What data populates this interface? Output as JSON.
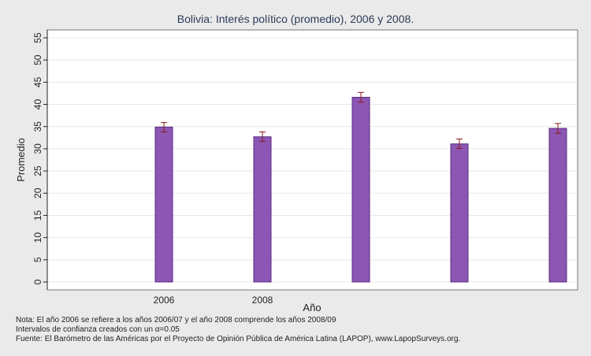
{
  "chart_data": {
    "type": "bar",
    "title": "Bolivia: Interés político (promedio), 2006 y 2008.",
    "xlabel": "Año",
    "ylabel": "Promedio",
    "categories": [
      "2006",
      "2008",
      "",
      "",
      ""
    ],
    "values": [
      34.9,
      32.7,
      41.6,
      31.1,
      34.6
    ],
    "ci_low": [
      33.8,
      31.7,
      40.5,
      30.1,
      33.5
    ],
    "ci_high": [
      35.9,
      33.8,
      42.7,
      32.2,
      35.7
    ],
    "ylim": [
      0,
      55
    ],
    "yticks": [
      0,
      5,
      10,
      15,
      20,
      25,
      30,
      35,
      40,
      45,
      50,
      55
    ],
    "grid": true,
    "bar_color": "#8c56b4",
    "bar_edge_color": "#5a2d82",
    "error_bar_color": "#8b1a1a",
    "plot_background": "#ffffff",
    "page_background": "#eaeaea",
    "grid_color": "#e8e8e8"
  },
  "notes": {
    "line1": "Nota: El año 2006 se refiere a los años 2006/07 y el año 2008 comprende los años 2008/09",
    "line2": "Intervalos de confianza creados con un α=0.05",
    "line3": "Fuente: El Barómetro de las Américas por el Proyecto de Opinión Pública de América Latina (LAPOP), www.LapopSurveys.org."
  }
}
